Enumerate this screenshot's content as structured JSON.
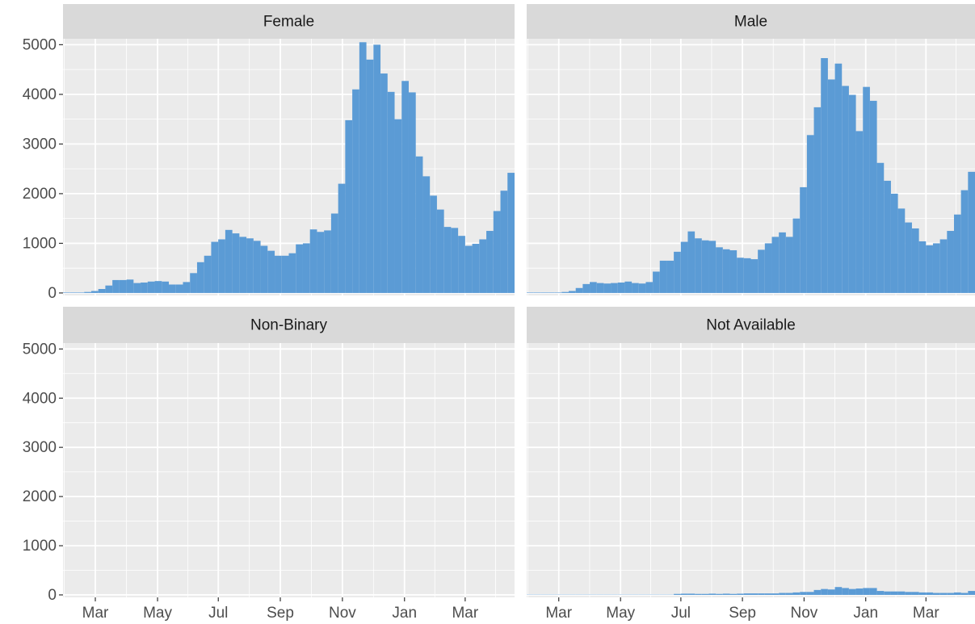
{
  "chart_data": {
    "type": "histogram",
    "color": "#5b9bd5",
    "grid": true,
    "bins": [
      0,
      1,
      2,
      3,
      4,
      5,
      6,
      7,
      8,
      9,
      10,
      11,
      12,
      13,
      14,
      15,
      16,
      17,
      18,
      19,
      20,
      21,
      22,
      23,
      24,
      25,
      26,
      27,
      28,
      29,
      30,
      31,
      32,
      33,
      34,
      35,
      36,
      37,
      38,
      39,
      40,
      41,
      42,
      43,
      44,
      45,
      46,
      47,
      48,
      49,
      50,
      51,
      52,
      53,
      54,
      55,
      56,
      57,
      58,
      59,
      60,
      61,
      62,
      63,
      64
    ],
    "xlim": [
      0,
      64
    ],
    "xticks": [
      {
        "value": 4.58,
        "label": "Mar"
      },
      {
        "value": 13.4,
        "label": "May"
      },
      {
        "value": 22.01,
        "label": "Jul"
      },
      {
        "value": 30.8,
        "label": "Sep"
      },
      {
        "value": 39.6,
        "label": "Nov"
      },
      {
        "value": 48.4,
        "label": "Jan"
      },
      {
        "value": 57.0,
        "label": "Mar"
      }
    ],
    "ylim": [
      -50,
      5120
    ],
    "yticks": [
      0,
      1000,
      2000,
      3000,
      4000,
      5000
    ],
    "facets": [
      {
        "title": "Female",
        "values": [
          10,
          10,
          10,
          20,
          40,
          80,
          150,
          260,
          260,
          270,
          200,
          210,
          230,
          240,
          230,
          170,
          170,
          220,
          400,
          620,
          750,
          1030,
          1080,
          1270,
          1200,
          1130,
          1100,
          1050,
          950,
          850,
          750,
          750,
          800,
          980,
          1000,
          1280,
          1230,
          1260,
          1600,
          2200,
          3480,
          4100,
          5050,
          4700,
          5000,
          4420,
          4050,
          3500,
          4270,
          4040,
          2750,
          2350,
          1960,
          1680,
          1330,
          1310,
          1150,
          950,
          990,
          1080,
          1250,
          1650,
          2060,
          2420
        ]
      },
      {
        "title": "Male",
        "values": [
          10,
          10,
          10,
          10,
          10,
          20,
          40,
          100,
          180,
          220,
          200,
          190,
          200,
          210,
          230,
          200,
          190,
          220,
          430,
          650,
          650,
          830,
          1030,
          1240,
          1100,
          1060,
          1050,
          920,
          880,
          860,
          710,
          700,
          680,
          870,
          1000,
          1130,
          1220,
          1130,
          1500,
          2130,
          3180,
          3740,
          4730,
          4300,
          4620,
          4170,
          3990,
          3260,
          4150,
          3870,
          2620,
          2260,
          2000,
          1700,
          1420,
          1300,
          1040,
          960,
          1000,
          1080,
          1250,
          1580,
          2070,
          2440
        ]
      },
      {
        "title": "Non-Binary",
        "values": [
          0,
          0,
          0,
          0,
          0,
          0,
          0,
          0,
          0,
          0,
          0,
          0,
          0,
          0,
          0,
          0,
          0,
          0,
          0,
          0,
          0,
          0,
          0,
          0,
          0,
          0,
          0,
          0,
          0,
          0,
          0,
          0,
          0,
          0,
          0,
          0,
          0,
          0,
          0,
          0,
          0,
          0,
          0,
          0,
          0,
          0,
          0,
          0,
          0,
          0,
          0,
          0,
          0,
          0,
          0,
          0,
          0,
          0,
          0,
          0,
          0,
          0,
          0,
          0
        ]
      },
      {
        "title": "Not Available",
        "values": [
          5,
          5,
          5,
          5,
          5,
          5,
          5,
          5,
          5,
          5,
          5,
          5,
          5,
          5,
          5,
          5,
          5,
          5,
          5,
          5,
          5,
          20,
          25,
          25,
          20,
          20,
          25,
          20,
          25,
          20,
          25,
          30,
          30,
          30,
          30,
          30,
          40,
          40,
          50,
          60,
          60,
          100,
          120,
          110,
          160,
          140,
          120,
          130,
          140,
          140,
          80,
          70,
          70,
          70,
          60,
          60,
          50,
          50,
          40,
          40,
          40,
          50,
          40,
          80
        ]
      }
    ]
  }
}
